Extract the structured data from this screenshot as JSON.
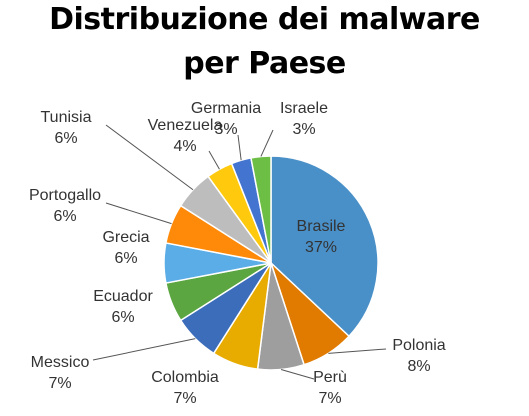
{
  "chart_data": {
    "type": "pie",
    "title_lines": [
      "Distribuzione dei malware",
      "per Paese"
    ],
    "start_angle_deg": 0,
    "direction": "clockwise",
    "legend": "none",
    "slices": [
      {
        "label": "Brasile",
        "value": 37,
        "pct_label": "37%",
        "color": "#4A90C8"
      },
      {
        "label": "Polonia",
        "value": 8,
        "pct_label": "8%",
        "color": "#E07B00"
      },
      {
        "label": "Perù",
        "value": 7,
        "pct_label": "7%",
        "color": "#9E9E9E"
      },
      {
        "label": "Colombia",
        "value": 7,
        "pct_label": "7%",
        "color": "#E8AC00"
      },
      {
        "label": "Messico",
        "value": 7,
        "pct_label": "7%",
        "color": "#3C6DBA"
      },
      {
        "label": "Ecuador",
        "value": 6,
        "pct_label": "6%",
        "color": "#5BA640"
      },
      {
        "label": "Grecia",
        "value": 6,
        "pct_label": "6%",
        "color": "#5AADE6"
      },
      {
        "label": "Portogallo",
        "value": 6,
        "pct_label": "6%",
        "color": "#FF8A0A"
      },
      {
        "label": "Tunisia",
        "value": 6,
        "pct_label": "6%",
        "color": "#BDBDBD"
      },
      {
        "label": "Venezuela",
        "value": 4,
        "pct_label": "4%",
        "color": "#FFC90E"
      },
      {
        "label": "Germania",
        "value": 3,
        "pct_label": "3%",
        "color": "#4374D0"
      },
      {
        "label": "Israele",
        "value": 3,
        "pct_label": "3%",
        "color": "#6DBE45"
      }
    ]
  }
}
